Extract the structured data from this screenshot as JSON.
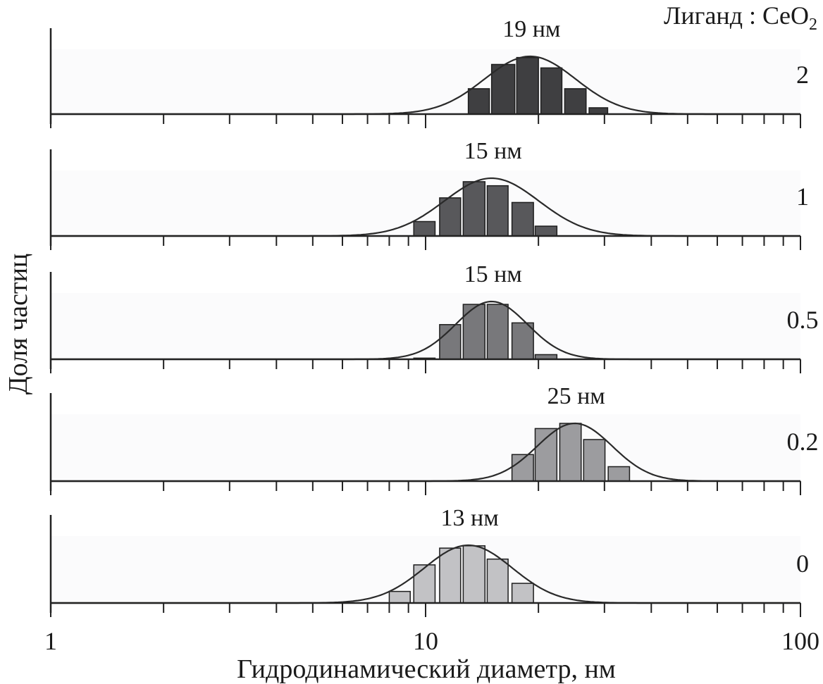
{
  "chart_data": {
    "type": "bar",
    "title": "",
    "xlabel": "Гидродинамический диаметр, нм",
    "ylabel": "Доля частиц",
    "xscale": "log",
    "xlim": [
      1,
      100
    ],
    "x_tick_labels": [
      "1",
      "10",
      "100"
    ],
    "legend_title": "Лиганд : CeO",
    "legend_title_subscript": "2",
    "panels": [
      {
        "ratio": "2",
        "peak_label": "19 нм",
        "bar_color": "#3f3f41",
        "bin_left_edges": [
          13.0,
          15.0,
          17.5,
          20.3,
          23.5,
          27.3
        ],
        "bin_right_edges": [
          14.8,
          17.3,
          20.0,
          23.1,
          26.8,
          30.6
        ],
        "values": [
          0.44,
          0.86,
          0.98,
          0.8,
          0.44,
          0.11
        ],
        "fit_peak_nm": 19,
        "fit_sigma_ln": 0.28
      },
      {
        "ratio": "1",
        "peak_label": "15 нм",
        "bar_color": "#58585b",
        "bin_left_edges": [
          9.3,
          10.9,
          12.6,
          14.6,
          17.0,
          19.6
        ],
        "bin_right_edges": [
          10.6,
          12.4,
          14.4,
          16.6,
          19.4,
          22.4
        ],
        "values": [
          0.25,
          0.66,
          0.94,
          0.87,
          0.58,
          0.17
        ],
        "fit_peak_nm": 15,
        "fit_sigma_ln": 0.29
      },
      {
        "ratio": "0.5",
        "peak_label": "15 нм",
        "bar_color": "#78787b",
        "bin_left_edges": [
          9.3,
          10.9,
          12.6,
          14.6,
          17.0,
          19.6
        ],
        "bin_right_edges": [
          10.6,
          12.4,
          14.4,
          16.6,
          19.4,
          22.4
        ],
        "values": [
          0.02,
          0.6,
          0.95,
          0.95,
          0.63,
          0.08
        ],
        "fit_peak_nm": 15,
        "fit_sigma_ln": 0.22
      },
      {
        "ratio": "0.2",
        "peak_label": "25 нм",
        "bar_color": "#9c9c9f",
        "bin_left_edges": [
          17.0,
          19.6,
          22.8,
          26.4,
          30.7
        ],
        "bin_right_edges": [
          19.4,
          22.4,
          26.0,
          30.1,
          35.0
        ],
        "values": [
          0.46,
          0.91,
          1.0,
          0.72,
          0.25
        ],
        "fit_peak_nm": 25,
        "fit_sigma_ln": 0.23
      },
      {
        "ratio": "0",
        "peak_label": "13 нм",
        "bar_color": "#c2c2c5",
        "bin_left_edges": [
          8.0,
          9.3,
          10.9,
          12.6,
          14.6,
          17.0
        ],
        "bin_right_edges": [
          9.1,
          10.6,
          12.4,
          14.4,
          16.6,
          19.4
        ],
        "values": [
          0.2,
          0.66,
          0.95,
          0.99,
          0.76,
          0.34
        ],
        "fit_peak_nm": 13,
        "fit_sigma_ln": 0.27
      }
    ],
    "grid": false,
    "legend": "right"
  }
}
